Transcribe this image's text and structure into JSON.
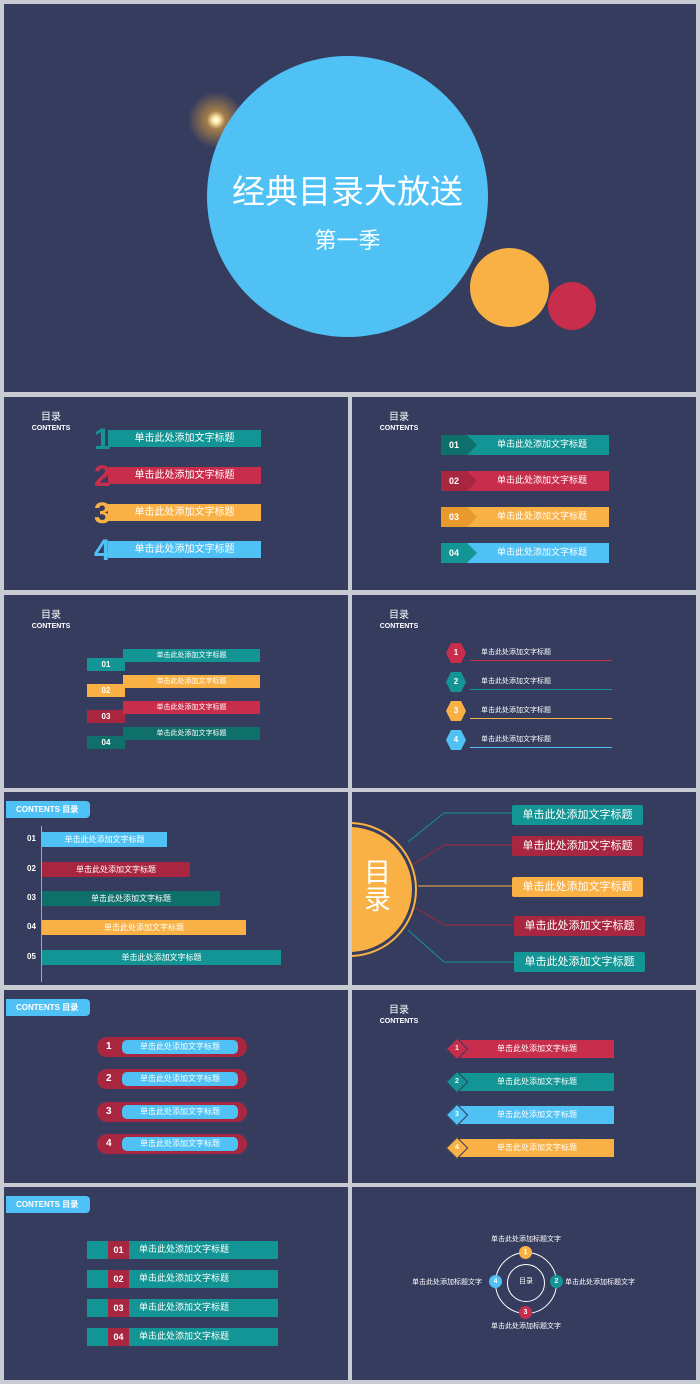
{
  "colors": {
    "bg": "#363c5e",
    "teal": "#129594",
    "red": "#c82d4c",
    "orange": "#f9b045",
    "blue": "#4fc1f4",
    "darkred": "#a92640",
    "darkteal": "#0f6f6b"
  },
  "cover": {
    "title": "经典目录大放送",
    "subtitle": "第一季"
  },
  "header": {
    "cn": "目录",
    "en": "CONTENTS"
  },
  "tab": {
    "label": "CONTENTS  目录"
  },
  "placeholder": "单击此处添加文字标题",
  "s1": {
    "items": [
      {
        "num": "1"
      },
      {
        "num": "2"
      },
      {
        "num": "3"
      },
      {
        "num": "4"
      }
    ]
  },
  "s2": {
    "items": [
      {
        "num": "01"
      },
      {
        "num": "02"
      },
      {
        "num": "03"
      },
      {
        "num": "04"
      }
    ]
  },
  "s3": {
    "items": [
      {
        "num": "01"
      },
      {
        "num": "02"
      },
      {
        "num": "03"
      },
      {
        "num": "04"
      }
    ]
  },
  "s4": {
    "items": [
      {
        "num": "1"
      },
      {
        "num": "2"
      },
      {
        "num": "3"
      },
      {
        "num": "4"
      }
    ]
  },
  "s5": {
    "items": [
      {
        "num": "01"
      },
      {
        "num": "02"
      },
      {
        "num": "03"
      },
      {
        "num": "04"
      },
      {
        "num": "05"
      }
    ]
  },
  "s6": {
    "circle_text": "目录"
  },
  "s7": {
    "items": [
      {
        "num": "1"
      },
      {
        "num": "2"
      },
      {
        "num": "3"
      },
      {
        "num": "4"
      }
    ]
  },
  "s8": {
    "items": [
      {
        "num": "1"
      },
      {
        "num": "2"
      },
      {
        "num": "3"
      },
      {
        "num": "4"
      }
    ]
  },
  "s9": {
    "items": [
      {
        "num": "01"
      },
      {
        "num": "02"
      },
      {
        "num": "03"
      },
      {
        "num": "04"
      }
    ]
  },
  "s10": {
    "center": "目录",
    "item_text": "单击此处添加标题文字",
    "nodes": [
      {
        "num": "1"
      },
      {
        "num": "2"
      },
      {
        "num": "3"
      },
      {
        "num": "4"
      }
    ]
  }
}
